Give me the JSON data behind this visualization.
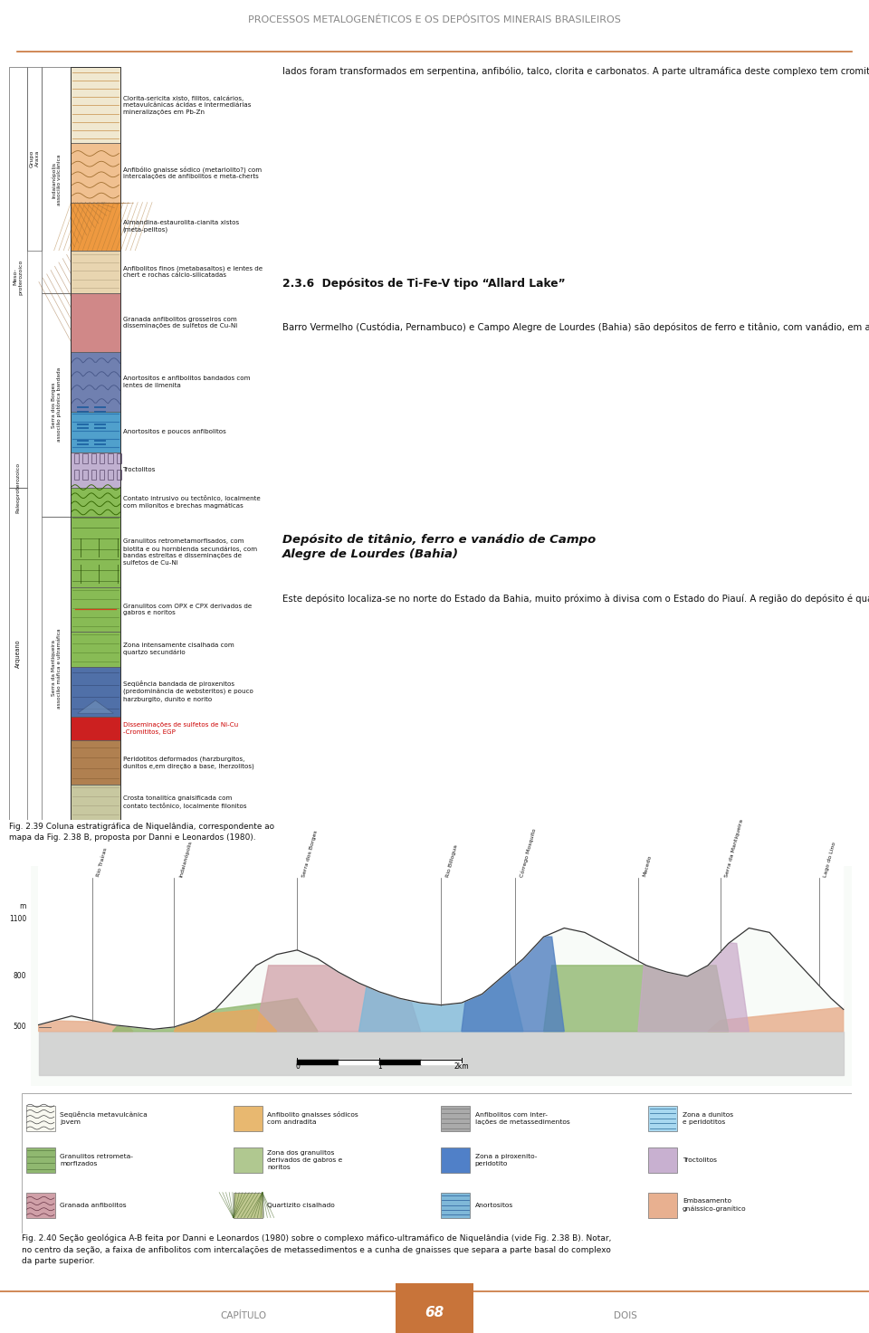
{
  "page_title": "PROCESSOS METALOGENÉTICOS E OS DEPÓSITOS MINERAIS BRASILEIROS",
  "footer_left": "CAPÍTULO",
  "footer_number": "68",
  "footer_right": "DOIS",
  "footer_color": "#C8743A",
  "bg_color": "#FFFFFF",
  "header_line_color": "#C8743A",
  "right_text_1": "lados foram transformados em serpentina, anfibólio, talco, clorita e carbonatos. A parte ultramáfica deste complexo tem cromititos que analisam até 3 ppm de Pt + Pd, que ocorrem como esperrilita, Pd₂As e PdAs₂, arsenetos e ferroligas, Pt (Rh) e Pd nativos, junto a poucos sulfetos de Fe, Cu, Ni e Pb. Os minerais de EGP ocorrem como inclusões na cromita, em meio aos cumulados de silicatos, entre os silicatos e as cromitas e dentro dos silicatos. As ocorrências de sulfetos de Fe-Cu-Ni são raras nas rochas inalteradas e comuns nas rochas serpentinizadas e/ou anfibolitizadas. Suita et al. (2000) sugerem que, levando em consideração a ausência de enxofre nas rochas de Luanga, o arsênio teria servido como coletor de EGP no magma.",
  "heading_2": "2.3.6  Depósitos de Ti-Fe-V tipo “Allard Lake”",
  "right_text_2": "Barro Vermelho (Custódia, Pernambuco) e Campo Alegre de Lourdes (Bahia) são depósitos de ferro e titânio, com vanádio, em anortositos, semelhantes aos da região do Adirondack (EUA e Canadá), tipo “Allard Lake”. Os depósitos existentes no sill do rio Jacaré (Maracás, Bahia), particularmente o da Fazenda Gulçari, têm V, Ti e Fe, porém os teores elevados de vanádio e de EGP (Galvão et al., 1986; Brito et al., 2000) e o modo de ocorrência do corpo mineralizado os situam em uma categoria de depósitos ainda não inteiramente modelados, que serão estudados posteriormente.",
  "heading_3": "Depósito de titânio, ferro e vanádio de Campo\nAlegre de Lourdes (Bahia)",
  "right_text_3": "Este depósito localiza-se no norte do Estado da Bahia, muito próximo à divisa com o Estado do Piauí. A região do depósito é quase toda coberta por sedimentos lateríticos terciários e quaternários, que dificultam a observação da geologia. Sampaio et al. (1986) descreveram onze lentes de minérios maciços, compostos por titanomagnetita e ilmenita granular (0,5 a 2,5 mm) com exsoluções de hematita e inclusões de pinta, calcopirita, pentlandita, pirrotita, esfalerita e arsenopirita, com",
  "fig_caption_1": "Fig. 2.39 Coluna estratigráfica de Niquelândia, correspondente ao\nmapa da Fig. 2.38 B, proposta por Danni e Leonardos (1980).",
  "fig_caption_2": "Fig. 2.40 Seção geológica A-B feita por Danni e Leonardos (1980) sobre o complexo máfico-ultramáfico de Niquelândia (vide Fig. 2.38 B). Notar,\nno centro da seção, a faixa de anfibolitos com intercalações de metassedimentos e a cunha de gnaisses que separa a parte basal do complexo\nda parte superior."
}
